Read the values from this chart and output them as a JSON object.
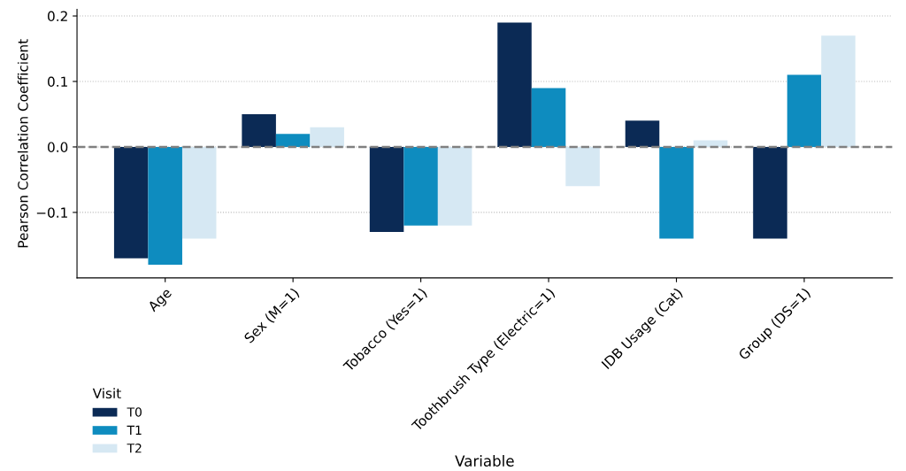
{
  "chart_data": {
    "type": "bar",
    "xlabel": "Variable",
    "ylabel": "Pearson Correlation Coefficient",
    "categories": [
      "Age",
      "Sex (M=1)",
      "Tobacco (Yes=1)",
      "Toothbrush Type (Electric=1)",
      "IDB Usage (Cat)",
      "Group (DS=1)"
    ],
    "series": [
      {
        "name": "T0",
        "color": "#0b2a55",
        "values": [
          -0.17,
          0.05,
          -0.13,
          0.19,
          0.04,
          -0.14
        ]
      },
      {
        "name": "T1",
        "color": "#0e8cbf",
        "values": [
          -0.18,
          0.02,
          -0.12,
          0.09,
          -0.14,
          0.11
        ]
      },
      {
        "name": "T2",
        "color": "#d6e8f3",
        "values": [
          -0.14,
          0.03,
          -0.12,
          -0.06,
          0.01,
          0.17
        ]
      }
    ],
    "legend_title": "Visit",
    "legend": "bottom left",
    "ylim": [
      -0.2,
      0.21
    ],
    "yticks": [
      {
        "value": -0.1,
        "label": "−0.1"
      },
      {
        "value": 0.0,
        "label": "0.0"
      },
      0.1,
      0.2
    ],
    "grid": "y",
    "ref_lines": [
      {
        "axis": "y",
        "value": 0,
        "color": "#808080",
        "line_style": "dashed"
      }
    ]
  }
}
